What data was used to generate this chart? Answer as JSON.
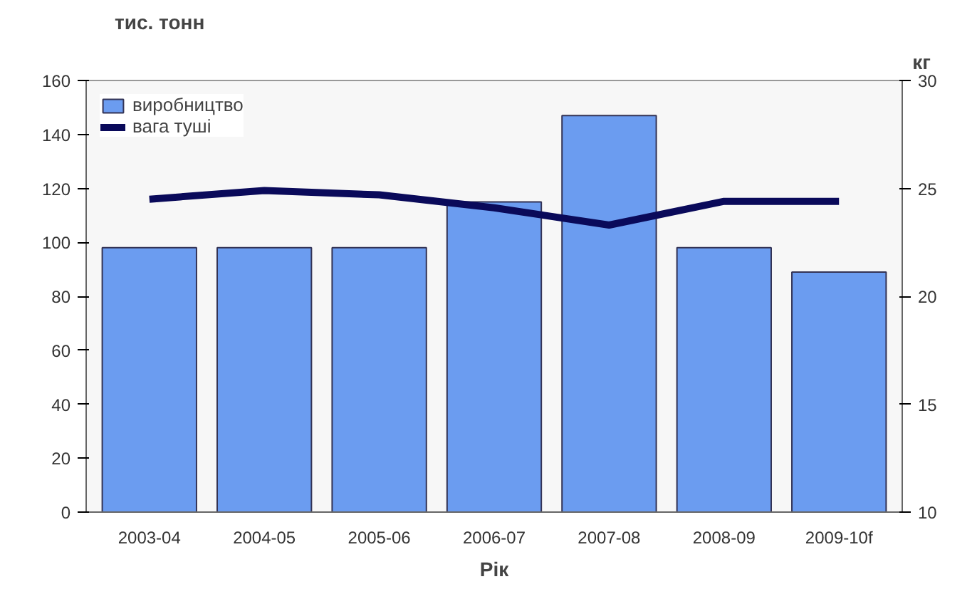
{
  "chart_data": {
    "type": "bar",
    "ylabel": "тис. тонн",
    "y2label": "кг",
    "xlabel": "Рік",
    "categories": [
      "2003-04",
      "2004-05",
      "2005-06",
      "2006-07",
      "2007-08",
      "2008-09",
      "2009-10f"
    ],
    "series": [
      {
        "name": "виробництво",
        "color": "#6b9cf0",
        "values": [
          98,
          98,
          98,
          115,
          147,
          98,
          89
        ]
      },
      {
        "name": "вага туші",
        "type": "line",
        "axis": "y2",
        "color": "#0a0a5a",
        "values": [
          24.5,
          24.9,
          24.7,
          24.1,
          23.3,
          24.4,
          24.4
        ]
      }
    ],
    "ylim": [
      0,
      160
    ],
    "yticks": [
      0,
      20,
      40,
      60,
      80,
      100,
      120,
      140,
      160
    ],
    "y2lim": [
      10,
      30
    ],
    "y2ticks": [
      10,
      15,
      20,
      25,
      30
    ],
    "grid": false,
    "legend": "top left",
    "line_style": "solid",
    "marker": "none"
  }
}
